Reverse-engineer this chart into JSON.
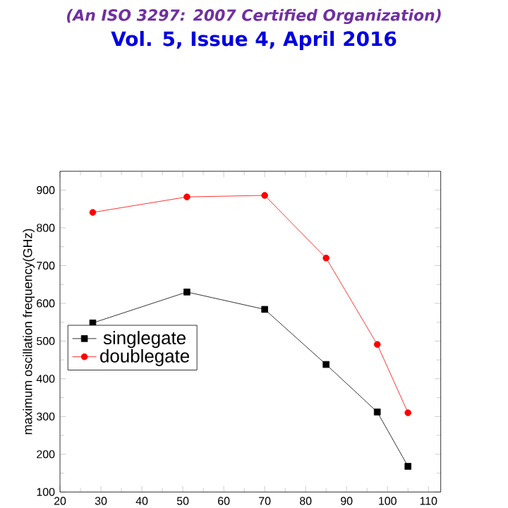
{
  "chart_data": {
    "type": "line",
    "title": "(An ISO 3297: 2007 Certified Organization)",
    "subtitle": "Vol. 5, Issue 4, April 2016",
    "ylabel": "maximum oscillation frequency(GHz)",
    "x": [
      28,
      51,
      70,
      85,
      97.5,
      105
    ],
    "series": [
      {
        "name": "singlegate",
        "color": "#000000",
        "marker": "square",
        "values": [
          548,
          630,
          584,
          438,
          312,
          168
        ]
      },
      {
        "name": "doublegate",
        "color": "#ff0000",
        "marker": "circle",
        "values": [
          841,
          882,
          886,
          720,
          491,
          310
        ]
      }
    ],
    "xlim": [
      20,
      113
    ],
    "xticks": [
      20,
      30,
      40,
      50,
      60,
      70,
      80,
      90,
      100,
      110
    ],
    "ylim": [
      100,
      950
    ],
    "yticks": [
      100,
      200,
      300,
      400,
      500,
      600,
      700,
      800,
      900
    ],
    "grid": false,
    "legend": "left"
  }
}
